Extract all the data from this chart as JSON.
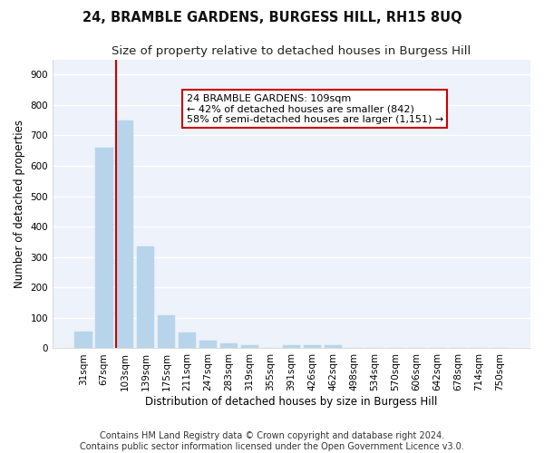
{
  "title": "24, BRAMBLE GARDENS, BURGESS HILL, RH15 8UQ",
  "subtitle": "Size of property relative to detached houses in Burgess Hill",
  "xlabel": "Distribution of detached houses by size in Burgess Hill",
  "ylabel": "Number of detached properties",
  "categories": [
    "31sqm",
    "67sqm",
    "103sqm",
    "139sqm",
    "175sqm",
    "211sqm",
    "247sqm",
    "283sqm",
    "319sqm",
    "355sqm",
    "391sqm",
    "426sqm",
    "462sqm",
    "498sqm",
    "534sqm",
    "570sqm",
    "606sqm",
    "642sqm",
    "678sqm",
    "714sqm",
    "750sqm"
  ],
  "values": [
    55,
    660,
    750,
    335,
    108,
    53,
    25,
    15,
    10,
    0,
    10,
    10,
    10,
    0,
    0,
    0,
    0,
    0,
    0,
    0,
    0
  ],
  "bar_color": "#b8d4ea",
  "bar_edge_color": "#b8d4ea",
  "highlight_line_color": "#cc0000",
  "annotation_text": "24 BRAMBLE GARDENS: 109sqm\n← 42% of detached houses are smaller (842)\n58% of semi-detached houses are larger (1,151) →",
  "annotation_box_color": "#ffffff",
  "annotation_box_edge_color": "#cc0000",
  "ylim": [
    0,
    950
  ],
  "yticks": [
    0,
    100,
    200,
    300,
    400,
    500,
    600,
    700,
    800,
    900
  ],
  "background_color": "#eef2fa",
  "grid_color": "#ffffff",
  "footer_line1": "Contains HM Land Registry data © Crown copyright and database right 2024.",
  "footer_line2": "Contains public sector information licensed under the Open Government Licence v3.0.",
  "title_fontsize": 10.5,
  "subtitle_fontsize": 9.5,
  "axis_label_fontsize": 8.5,
  "tick_fontsize": 7.5,
  "annotation_fontsize": 8,
  "footer_fontsize": 7
}
